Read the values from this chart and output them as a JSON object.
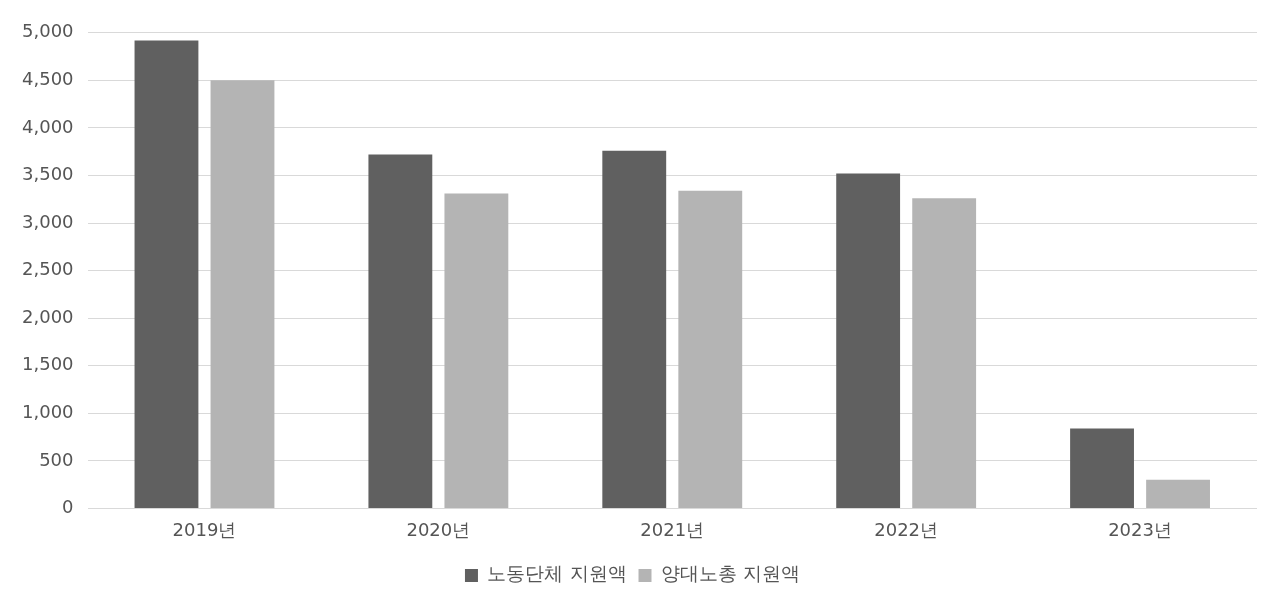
{
  "chart_data": {
    "type": "bar",
    "categories": [
      "2019년",
      "2020년",
      "2021년",
      "2022년",
      "2023년"
    ],
    "series": [
      {
        "name": "노동단체 지원액",
        "color": "#606060",
        "values": [
          4920,
          3720,
          3760,
          3520,
          840
        ]
      },
      {
        "name": "양대노총 지원액",
        "color": "#b4b4b4",
        "values": [
          4500,
          3310,
          3340,
          3260,
          300
        ]
      }
    ],
    "ylim": [
      0,
      5000
    ],
    "yticks": [
      {
        "value": 0,
        "label": "0"
      },
      {
        "value": 500,
        "label": "500"
      },
      {
        "value": 1000,
        "label": "1,000"
      },
      {
        "value": 1500,
        "label": "1,500"
      },
      {
        "value": 2000,
        "label": "2,000"
      },
      {
        "value": 2500,
        "label": "2,500"
      },
      {
        "value": 3000,
        "label": "3,000"
      },
      {
        "value": 3500,
        "label": "3,500"
      },
      {
        "value": 4000,
        "label": "4,000"
      },
      {
        "value": 4500,
        "label": "4,500"
      },
      {
        "value": 5000,
        "label": "5,000"
      }
    ],
    "grid": "y",
    "legend": "bottom"
  }
}
